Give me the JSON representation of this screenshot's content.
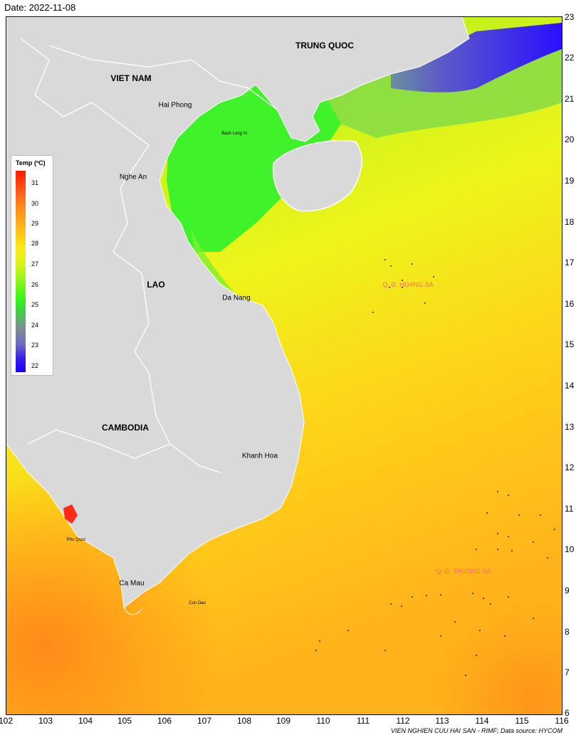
{
  "header": {
    "date": "Date: 2022-11-08"
  },
  "map": {
    "countries": {
      "vietnam": "VIET NAM",
      "china": "TRUNG QUOC",
      "laos": "LAO",
      "cambodia": "CAMBODIA"
    },
    "places": {
      "hai_phong": "Hai Phong",
      "bach_long_vi": "Bach Long Vi",
      "nghe_an": "Nghe An",
      "da_nang": "Da Nang",
      "khanh_hoa": "Khanh Hoa",
      "phu_quoc": "Phu Quoc",
      "ca_mau": "Ca Mau",
      "con_dao": "Con Dao"
    },
    "islands": {
      "hoang_sa": "Q. D. HOANG SA",
      "truong_sa": "Q. D. TRUONG SA"
    },
    "x_ticks": [
      "102",
      "103",
      "104",
      "105",
      "106",
      "107",
      "108",
      "109",
      "110",
      "111",
      "112",
      "113",
      "114",
      "115",
      "116"
    ],
    "y_ticks": [
      "23",
      "22",
      "21",
      "20",
      "19",
      "18",
      "17",
      "16",
      "15",
      "14",
      "13",
      "12",
      "11",
      "10",
      "9",
      "8",
      "7",
      "6"
    ]
  },
  "legend": {
    "title": "Temp (ºC)",
    "ticks": [
      "31",
      "30",
      "29",
      "28",
      "27",
      "26",
      "25",
      "24",
      "23",
      "22"
    ]
  },
  "footer": {
    "credit": "VIEN NGHIEN CUU HAI SAN - RIMF; Data source: HYCOM"
  },
  "colors": {
    "land": "#d9d9d9",
    "border": "#ffffff",
    "island_label": "#ff6a6a"
  }
}
